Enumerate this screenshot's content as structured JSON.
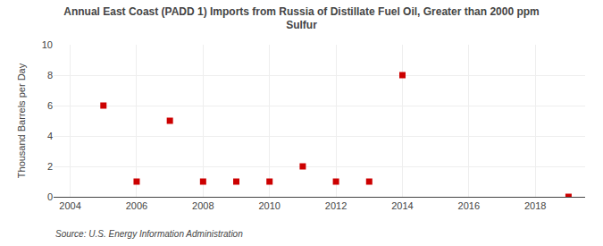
{
  "chart_data": {
    "type": "scatter",
    "title": "Annual East Coast (PADD 1) Imports from Russia of Distillate Fuel Oil, Greater than 2000 ppm\nSulfur",
    "ylabel": "Thousand Barrels per Day",
    "annotations": [
      "Source: U.S. Energy Information Administration"
    ],
    "x": [
      2005,
      2006,
      2007,
      2008,
      2009,
      2010,
      2011,
      2012,
      2013,
      2014,
      2019
    ],
    "values": [
      6,
      1,
      5,
      1,
      1,
      1,
      2,
      1,
      1,
      8,
      0
    ],
    "color": "#cc0000",
    "marker": "square",
    "xlim": [
      2003.5,
      2019.5
    ],
    "xticks": [
      2004,
      2006,
      2008,
      2010,
      2012,
      2014,
      2016,
      2018
    ],
    "ylim": [
      0,
      10
    ],
    "yticks": [
      0,
      2,
      4,
      6,
      8,
      10
    ],
    "grid": true
  }
}
